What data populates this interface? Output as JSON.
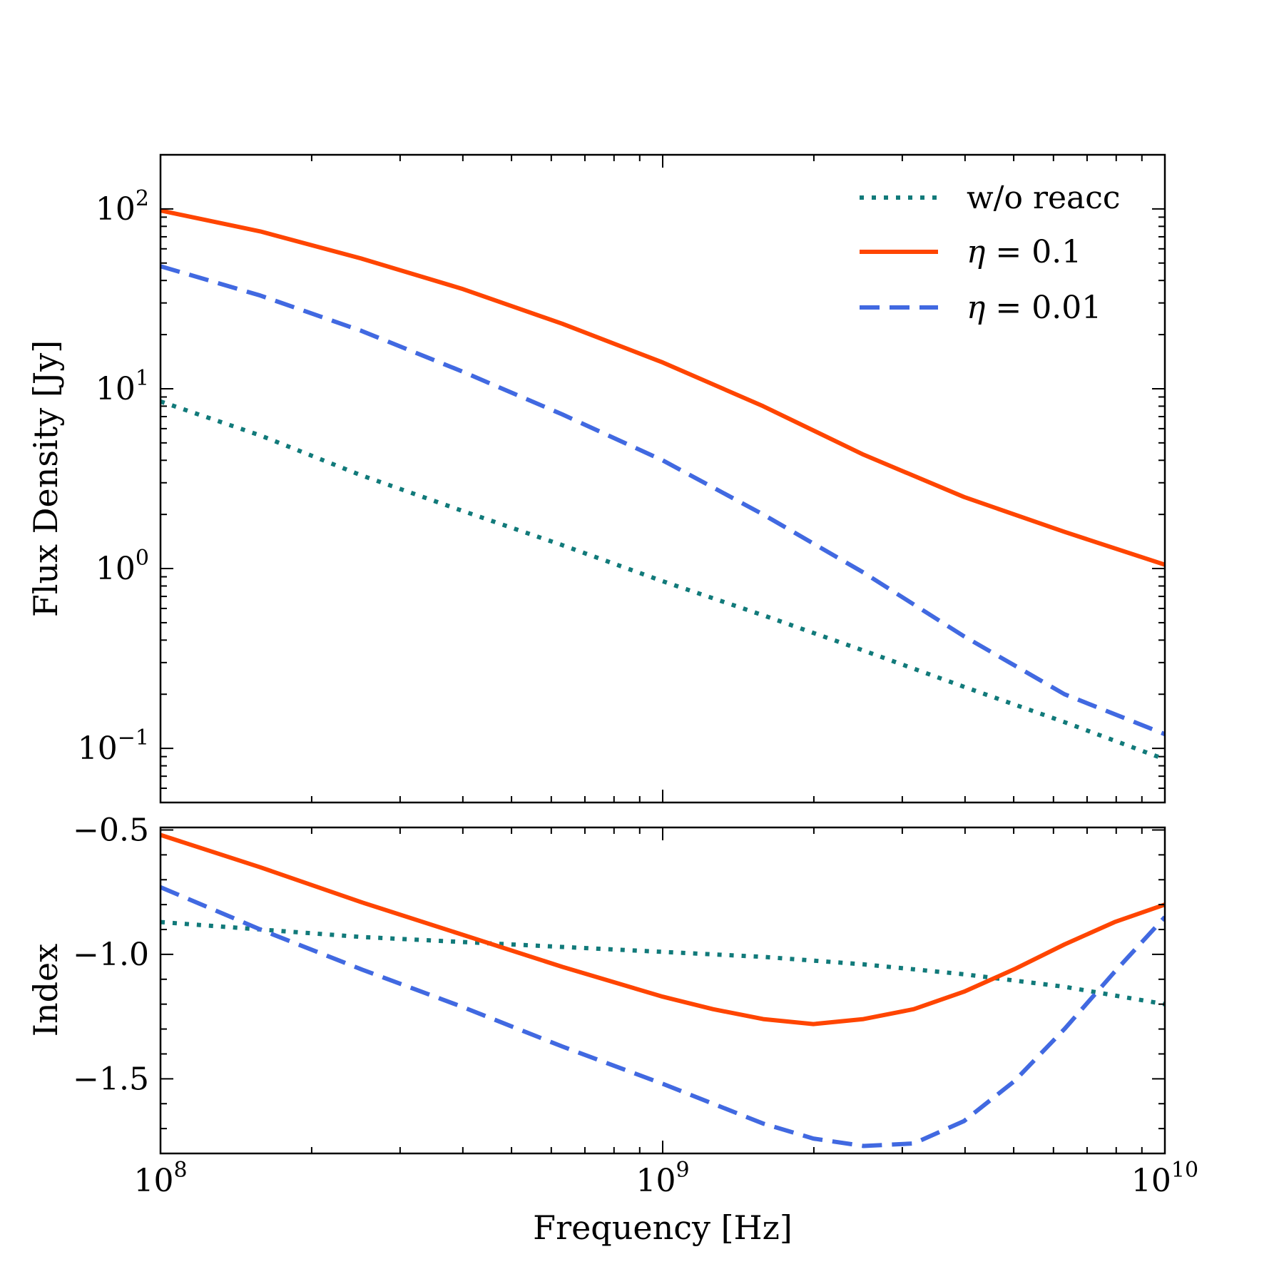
{
  "chart_data": [
    {
      "type": "line",
      "panel": "top",
      "ylabel": "Flux Density [Jy]",
      "xscale": "log",
      "yscale": "log",
      "xlim": [
        100000000,
        10000000000
      ],
      "ylim": [
        0.05,
        200
      ],
      "x_ticks": [
        {
          "value": 100000000,
          "base": "10",
          "exp": "8"
        },
        {
          "value": 1000000000,
          "base": "10",
          "exp": "9"
        },
        {
          "value": 10000000000,
          "base": "10",
          "exp": "10"
        }
      ],
      "y_ticks": [
        {
          "value": 0.1,
          "base": "10",
          "exp": "−1"
        },
        {
          "value": 1,
          "base": "10",
          "exp": "0"
        },
        {
          "value": 10,
          "base": "10",
          "exp": "1"
        },
        {
          "value": 100,
          "base": "10",
          "exp": "2"
        }
      ],
      "legend_position": "top-right",
      "legend": [
        {
          "label": "w/o reacc",
          "series": "woreacc"
        },
        {
          "label_math": "η",
          "label_rest": " = 0.1",
          "series": "eta01"
        },
        {
          "label_math": "η",
          "label_rest": " = 0.01",
          "series": "eta001"
        }
      ],
      "series": [
        {
          "id": "woreacc",
          "color": "#117a7a",
          "style": "dotted",
          "x": [
            100000000,
            158000000,
            251000000,
            398000000,
            631000000,
            1000000000,
            1585000000,
            2512000000,
            3981000000,
            6310000000,
            10000000000
          ],
          "values": [
            8.5,
            5.5,
            3.3,
            2.1,
            1.35,
            0.85,
            0.55,
            0.35,
            0.22,
            0.14,
            0.087
          ]
        },
        {
          "id": "eta01",
          "color": "#ff4500",
          "style": "solid",
          "x": [
            100000000,
            158000000,
            251000000,
            398000000,
            631000000,
            1000000000,
            1585000000,
            2512000000,
            3981000000,
            6310000000,
            10000000000
          ],
          "values": [
            98,
            75,
            53,
            36,
            23,
            14,
            8,
            4.3,
            2.5,
            1.6,
            1.05
          ]
        },
        {
          "id": "eta001",
          "color": "#4169e1",
          "style": "dashed",
          "x": [
            100000000,
            158000000,
            251000000,
            398000000,
            631000000,
            1000000000,
            1585000000,
            2512000000,
            3981000000,
            6310000000,
            10000000000
          ],
          "values": [
            48,
            33,
            21,
            12.5,
            7.2,
            4.0,
            2.0,
            0.95,
            0.42,
            0.2,
            0.12
          ]
        }
      ]
    },
    {
      "type": "line",
      "panel": "bottom",
      "xlabel": "Frequency [Hz]",
      "ylabel": "Index",
      "xscale": "log",
      "yscale": "linear",
      "xlim": [
        100000000,
        10000000000
      ],
      "ylim": [
        -1.8,
        -0.49
      ],
      "x_ticks": [
        {
          "value": 100000000,
          "base": "10",
          "exp": "8"
        },
        {
          "value": 1000000000,
          "base": "10",
          "exp": "9"
        },
        {
          "value": 10000000000,
          "base": "10",
          "exp": "10"
        }
      ],
      "y_ticks": [
        {
          "value": -0.5,
          "label": "−0.5"
        },
        {
          "value": -1.0,
          "label": "−1.0"
        },
        {
          "value": -1.5,
          "label": "−1.5"
        }
      ],
      "series": [
        {
          "id": "woreacc",
          "color": "#117a7a",
          "style": "dotted",
          "x": [
            100000000,
            158000000,
            251000000,
            398000000,
            631000000,
            1000000000,
            1585000000,
            2512000000,
            3981000000,
            6310000000,
            10000000000
          ],
          "values": [
            -0.87,
            -0.9,
            -0.93,
            -0.95,
            -0.97,
            -0.99,
            -1.01,
            -1.04,
            -1.08,
            -1.13,
            -1.2
          ]
        },
        {
          "id": "eta01",
          "color": "#ff4500",
          "style": "solid",
          "x": [
            100000000,
            158000000,
            251000000,
            398000000,
            631000000,
            1000000000,
            1259000000,
            1585000000,
            1995000000,
            2512000000,
            3162000000,
            3981000000,
            5012000000,
            6310000000,
            7943000000,
            10000000000
          ],
          "values": [
            -0.52,
            -0.65,
            -0.79,
            -0.92,
            -1.05,
            -1.17,
            -1.22,
            -1.26,
            -1.28,
            -1.26,
            -1.22,
            -1.15,
            -1.06,
            -0.96,
            -0.87,
            -0.8
          ]
        },
        {
          "id": "eta001",
          "color": "#4169e1",
          "style": "dashed",
          "x": [
            100000000,
            158000000,
            251000000,
            398000000,
            631000000,
            1000000000,
            1259000000,
            1585000000,
            1995000000,
            2512000000,
            3162000000,
            3981000000,
            5012000000,
            6310000000,
            7943000000,
            10000000000
          ],
          "values": [
            -0.73,
            -0.9,
            -1.06,
            -1.21,
            -1.37,
            -1.52,
            -1.6,
            -1.68,
            -1.74,
            -1.77,
            -1.76,
            -1.67,
            -1.51,
            -1.3,
            -1.07,
            -0.85
          ]
        }
      ]
    }
  ]
}
